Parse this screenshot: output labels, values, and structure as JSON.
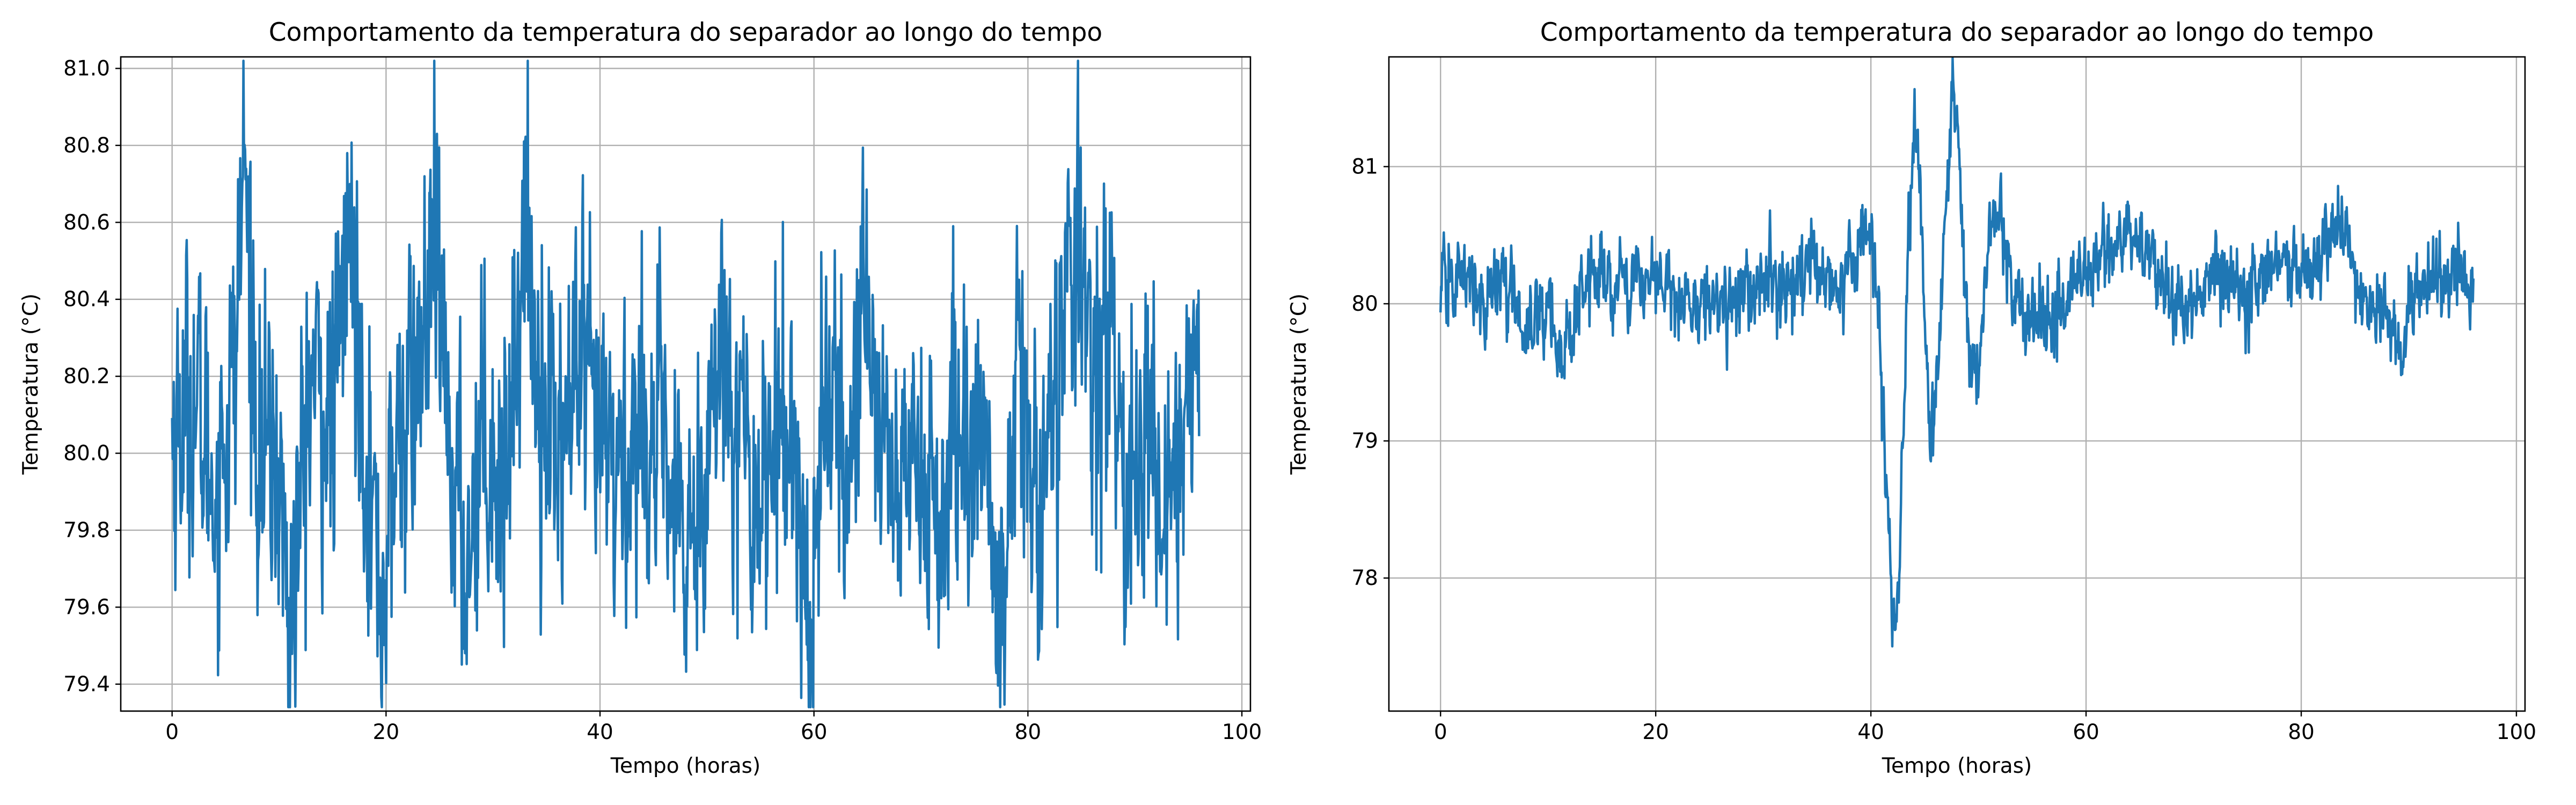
{
  "chart_data": [
    {
      "type": "line",
      "title": "Comportamento da temperatura do separador ao longo do tempo",
      "xlabel": "Tempo (horas)",
      "ylabel": "Temperatura (°C)",
      "xlim": [
        -4.8,
        100.8
      ],
      "ylim": [
        79.33,
        81.03
      ],
      "xticks": [
        0,
        20,
        40,
        60,
        80,
        100
      ],
      "xtick_labels": [
        "0",
        "20",
        "40",
        "60",
        "80",
        "100"
      ],
      "yticks": [
        79.4,
        79.6,
        79.8,
        80.0,
        80.2,
        80.4,
        80.6,
        80.8,
        81.0
      ],
      "ytick_labels": [
        "79.4",
        "79.6",
        "79.8",
        "80.0",
        "80.2",
        "80.4",
        "80.6",
        "80.8",
        "81.0"
      ],
      "grid": true,
      "line_color": "#1f77b4",
      "x_range": [
        0,
        96
      ],
      "series": [
        {
          "x": [
            0,
            2,
            4,
            6,
            6.7,
            8,
            10,
            11,
            13,
            15,
            16.5,
            18,
            19.5,
            21,
            23,
            24.5,
            26,
            27.5,
            29,
            31,
            33,
            34,
            36,
            38,
            40,
            42,
            44,
            46,
            48,
            50,
            52,
            54,
            56,
            58,
            59.5,
            61,
            63,
            64.8,
            66,
            68,
            70,
            72,
            74,
            76,
            77.8,
            79,
            81,
            83,
            85,
            86,
            87,
            89,
            91,
            92.5,
            94,
            96
          ],
          "values": [
            80.05,
            80.15,
            79.9,
            80.25,
            80.8,
            80.0,
            79.95,
            79.55,
            80.2,
            80.05,
            80.6,
            80.1,
            79.6,
            80.0,
            80.2,
            80.5,
            80.0,
            79.7,
            80.1,
            79.9,
            80.6,
            80.25,
            80.0,
            80.2,
            80.0,
            79.95,
            80.1,
            79.95,
            79.7,
            80.05,
            80.3,
            79.9,
            80.0,
            80.1,
            79.5,
            80.2,
            79.9,
            80.5,
            80.1,
            79.9,
            80.0,
            79.8,
            80.05,
            80.0,
            79.5,
            80.2,
            79.85,
            80.3,
            80.5,
            80.2,
            80.4,
            79.9,
            80.05,
            79.9,
            80.0,
            80.2
          ]
        }
      ]
    },
    {
      "type": "line",
      "title": "Comportamento da temperatura do separador ao longo do tempo",
      "xlabel": "Tempo (horas)",
      "ylabel": "Temperatura (°C)",
      "xlim": [
        -4.8,
        100.8
      ],
      "ylim": [
        77.03,
        81.8
      ],
      "xticks": [
        0,
        20,
        40,
        60,
        80,
        100
      ],
      "xtick_labels": [
        "0",
        "20",
        "40",
        "60",
        "80",
        "100"
      ],
      "yticks": [
        78,
        79,
        80,
        81
      ],
      "ytick_labels": [
        "78",
        "79",
        "80",
        "81"
      ],
      "grid": true,
      "line_color": "#1f77b4",
      "x_range": [
        0,
        96
      ],
      "series": [
        {
          "x": [
            0,
            2,
            4,
            6,
            8,
            10,
            11.5,
            13,
            15,
            17,
            19,
            21,
            23,
            25,
            27,
            29,
            31,
            33,
            35,
            37,
            39,
            40,
            40.8,
            41.5,
            42,
            42.5,
            43,
            43.5,
            44,
            44.5,
            45,
            45.5,
            46,
            46.5,
            47,
            47.5,
            48,
            48.5,
            49,
            49.5,
            50,
            51,
            52,
            53,
            54,
            56,
            58,
            60,
            62,
            64,
            66,
            68,
            70,
            72,
            74,
            76,
            78,
            80,
            82,
            84,
            86,
            88,
            89,
            91,
            93,
            96
          ],
          "values": [
            80.1,
            80.2,
            80.0,
            80.2,
            79.8,
            80.0,
            79.6,
            80.1,
            80.2,
            80.1,
            80.2,
            80.1,
            80.0,
            80.05,
            80.0,
            80.15,
            80.1,
            80.1,
            80.3,
            80.1,
            80.5,
            80.5,
            79.8,
            78.6,
            77.6,
            77.8,
            79.0,
            80.5,
            81.2,
            81.1,
            79.9,
            78.9,
            79.3,
            79.9,
            80.7,
            81.5,
            81.4,
            80.6,
            79.7,
            79.3,
            79.5,
            80.6,
            80.7,
            80.1,
            79.9,
            79.9,
            80.0,
            80.2,
            80.4,
            80.5,
            80.3,
            80.0,
            79.95,
            80.3,
            80.1,
            80.1,
            80.3,
            80.2,
            80.4,
            80.6,
            79.9,
            79.95,
            79.7,
            80.15,
            80.2,
            80.15
          ]
        }
      ]
    }
  ]
}
